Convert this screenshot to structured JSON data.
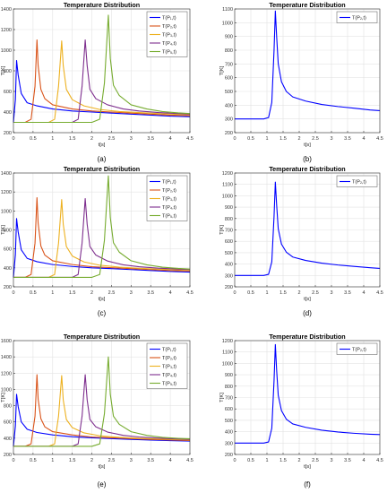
{
  "chart_data": [
    {
      "panel_label": "(a)",
      "type": "line",
      "title": "Temperature Distribution",
      "xlabel": "t[s]",
      "ylabel": "T[K]",
      "xlim": [
        0,
        4.5
      ],
      "ylim": [
        200,
        1400
      ],
      "xticks": [
        "0",
        "0.5",
        "1",
        "1.5",
        "2",
        "2.5",
        "3",
        "3.5",
        "4",
        "4.5"
      ],
      "yticks": [
        "200",
        "400",
        "600",
        "800",
        "1000",
        "1200",
        "1400"
      ],
      "grid": true,
      "legend": "top-right",
      "series": [
        {
          "name": "T(P₁,t)",
          "color": "#0000ff",
          "x": [
            0,
            0.05,
            0.08,
            0.12,
            0.2,
            0.35,
            0.6,
            1.0,
            1.5,
            2.0,
            2.5,
            3.0,
            3.5,
            4.0,
            4.5
          ],
          "y": [
            300,
            520,
            900,
            760,
            580,
            490,
            460,
            430,
            410,
            400,
            390,
            380,
            370,
            360,
            355
          ]
        },
        {
          "name": "T(P₂,t)",
          "color": "#d95319",
          "x": [
            0,
            0.3,
            0.45,
            0.55,
            0.6,
            0.63,
            0.7,
            0.8,
            1.0,
            1.5,
            2.0,
            2.5,
            3.0,
            3.5,
            4.0,
            4.5
          ],
          "y": [
            300,
            300,
            330,
            650,
            1100,
            850,
            620,
            530,
            470,
            430,
            410,
            400,
            390,
            380,
            370,
            365
          ]
        },
        {
          "name": "T(P₃,t)",
          "color": "#edb120",
          "x": [
            0,
            0.9,
            1.05,
            1.15,
            1.23,
            1.27,
            1.35,
            1.5,
            1.8,
            2.2,
            2.7,
            3.2,
            3.7,
            4.2,
            4.5
          ],
          "y": [
            300,
            300,
            330,
            650,
            1090,
            850,
            620,
            520,
            460,
            425,
            405,
            395,
            385,
            378,
            375
          ]
        },
        {
          "name": "T(P₄,t)",
          "color": "#7e2f8e",
          "x": [
            0,
            1.5,
            1.65,
            1.75,
            1.83,
            1.88,
            1.95,
            2.1,
            2.4,
            2.8,
            3.2,
            3.7,
            4.2,
            4.5
          ],
          "y": [
            300,
            300,
            330,
            650,
            1100,
            850,
            620,
            530,
            470,
            430,
            410,
            395,
            385,
            380
          ]
        },
        {
          "name": "T(P₅,t)",
          "color": "#77ac30",
          "x": [
            0,
            2.0,
            2.2,
            2.32,
            2.42,
            2.47,
            2.55,
            2.7,
            3.0,
            3.4,
            3.8,
            4.2,
            4.5
          ],
          "y": [
            300,
            300,
            330,
            680,
            1340,
            920,
            660,
            560,
            470,
            430,
            405,
            392,
            385
          ]
        }
      ]
    },
    {
      "panel_label": "(b)",
      "type": "line",
      "title": "Temperature Distribution",
      "xlabel": "t[s]",
      "ylabel": "T[K]",
      "xlim": [
        0,
        4.5
      ],
      "ylim": [
        200,
        1100
      ],
      "xticks": [
        "0",
        "0.5",
        "1",
        "1.5",
        "2",
        "2.5",
        "3",
        "3.5",
        "4",
        "4.5"
      ],
      "yticks": [
        "200",
        "300",
        "400",
        "500",
        "600",
        "700",
        "800",
        "900",
        "1000",
        "1100"
      ],
      "grid": true,
      "legend": "top-right",
      "series": [
        {
          "name": "T(P₂,t)",
          "color": "#0000ff",
          "x": [
            0,
            0.9,
            1.05,
            1.15,
            1.22,
            1.26,
            1.3,
            1.35,
            1.45,
            1.6,
            1.8,
            2.2,
            2.7,
            3.2,
            3.7,
            4.2,
            4.5
          ],
          "y": [
            300,
            300,
            310,
            420,
            800,
            1085,
            900,
            700,
            570,
            500,
            460,
            430,
            405,
            390,
            378,
            365,
            360
          ]
        }
      ]
    },
    {
      "panel_label": "(c)",
      "type": "line",
      "title": "Temperature Distribution",
      "xlabel": "t[s]",
      "ylabel": "T[K]",
      "xlim": [
        0,
        4.5
      ],
      "ylim": [
        200,
        1400
      ],
      "xticks": [
        "0",
        "0.5",
        "1",
        "1.5",
        "2",
        "2.5",
        "3",
        "3.5",
        "4",
        "4.5"
      ],
      "yticks": [
        "200",
        "400",
        "600",
        "800",
        "1000",
        "1200",
        "1400"
      ],
      "grid": true,
      "legend": "top-right",
      "series": [
        {
          "name": "T(P₁,t)",
          "color": "#0000ff",
          "x": [
            0,
            0.05,
            0.08,
            0.12,
            0.2,
            0.35,
            0.6,
            1.0,
            1.5,
            2.0,
            2.5,
            3.0,
            3.5,
            4.0,
            4.5
          ],
          "y": [
            300,
            540,
            920,
            780,
            590,
            500,
            465,
            435,
            415,
            400,
            392,
            382,
            372,
            362,
            355
          ]
        },
        {
          "name": "T(P₂,t)",
          "color": "#d95319",
          "x": [
            0,
            0.3,
            0.45,
            0.55,
            0.6,
            0.63,
            0.7,
            0.8,
            1.0,
            1.5,
            2.0,
            2.5,
            3.0,
            3.5,
            4.0,
            4.5
          ],
          "y": [
            300,
            300,
            330,
            660,
            1140,
            870,
            630,
            535,
            475,
            435,
            412,
            402,
            392,
            382,
            372,
            367
          ]
        },
        {
          "name": "T(P₃,t)",
          "color": "#edb120",
          "x": [
            0,
            0.9,
            1.05,
            1.15,
            1.23,
            1.27,
            1.35,
            1.5,
            1.8,
            2.2,
            2.7,
            3.2,
            3.7,
            4.2,
            4.5
          ],
          "y": [
            300,
            300,
            330,
            660,
            1120,
            860,
            625,
            525,
            462,
            428,
            408,
            396,
            386,
            380,
            376
          ]
        },
        {
          "name": "T(P₄,t)",
          "color": "#7e2f8e",
          "x": [
            0,
            1.5,
            1.65,
            1.75,
            1.83,
            1.88,
            1.95,
            2.1,
            2.4,
            2.8,
            3.2,
            3.7,
            4.2,
            4.5
          ],
          "y": [
            300,
            300,
            330,
            660,
            1130,
            860,
            625,
            535,
            472,
            432,
            412,
            397,
            387,
            382
          ]
        },
        {
          "name": "T(P₅,t)",
          "color": "#77ac30",
          "x": [
            0,
            2.0,
            2.2,
            2.32,
            2.42,
            2.47,
            2.55,
            2.7,
            3.0,
            3.4,
            3.8,
            4.2,
            4.5
          ],
          "y": [
            300,
            300,
            330,
            690,
            1370,
            930,
            665,
            565,
            475,
            432,
            407,
            394,
            387
          ]
        }
      ]
    },
    {
      "panel_label": "(d)",
      "type": "line",
      "title": "Temperature Distribution",
      "xlabel": "t[s]",
      "ylabel": "T[K]",
      "xlim": [
        0,
        4.5
      ],
      "ylim": [
        200,
        1200
      ],
      "xticks": [
        "0",
        "0.5",
        "1",
        "1.5",
        "2",
        "2.5",
        "3",
        "3.5",
        "4",
        "4.5"
      ],
      "yticks": [
        "200",
        "300",
        "400",
        "500",
        "600",
        "700",
        "800",
        "900",
        "1000",
        "1100",
        "1200"
      ],
      "grid": true,
      "legend": "top-right",
      "series": [
        {
          "name": "T(P₂,t)",
          "color": "#0000ff",
          "x": [
            0,
            0.9,
            1.05,
            1.15,
            1.22,
            1.26,
            1.3,
            1.35,
            1.45,
            1.6,
            1.8,
            2.2,
            2.7,
            3.2,
            3.7,
            4.2,
            4.5
          ],
          "y": [
            300,
            300,
            310,
            420,
            820,
            1120,
            920,
            710,
            575,
            505,
            462,
            432,
            408,
            392,
            380,
            368,
            362
          ]
        }
      ]
    },
    {
      "panel_label": "(e)",
      "type": "line",
      "title": "Temperature Distribution",
      "xlabel": "t[s]",
      "ylabel": "T[K]",
      "xlim": [
        0,
        4.5
      ],
      "ylim": [
        200,
        1600
      ],
      "xticks": [
        "0",
        "0.5",
        "1",
        "1.5",
        "2",
        "2.5",
        "3",
        "3.5",
        "4",
        "4.5"
      ],
      "yticks": [
        "200",
        "400",
        "600",
        "800",
        "1000",
        "1200",
        "1400",
        "1600"
      ],
      "grid": true,
      "legend": "top-right",
      "series": [
        {
          "name": "T(P₁,t)",
          "color": "#0000ff",
          "x": [
            0,
            0.05,
            0.08,
            0.12,
            0.2,
            0.35,
            0.6,
            1.0,
            1.5,
            2.0,
            2.5,
            3.0,
            3.5,
            4.0,
            4.5
          ],
          "y": [
            300,
            550,
            940,
            790,
            600,
            510,
            470,
            440,
            418,
            405,
            395,
            385,
            377,
            370,
            365
          ]
        },
        {
          "name": "T(P₂,t)",
          "color": "#d95319",
          "x": [
            0,
            0.3,
            0.45,
            0.55,
            0.6,
            0.63,
            0.7,
            0.8,
            1.0,
            1.5,
            2.0,
            2.5,
            3.0,
            3.5,
            4.0,
            4.5
          ],
          "y": [
            300,
            300,
            330,
            670,
            1180,
            880,
            640,
            540,
            480,
            440,
            415,
            405,
            395,
            385,
            378,
            372
          ]
        },
        {
          "name": "T(P₃,t)",
          "color": "#edb120",
          "x": [
            0,
            0.9,
            1.05,
            1.15,
            1.23,
            1.27,
            1.35,
            1.5,
            1.8,
            2.2,
            2.7,
            3.2,
            3.7,
            4.2,
            4.5
          ],
          "y": [
            300,
            300,
            330,
            670,
            1170,
            870,
            630,
            530,
            465,
            430,
            410,
            398,
            390,
            384,
            380
          ]
        },
        {
          "name": "T(P₄,t)",
          "color": "#7e2f8e",
          "x": [
            0,
            1.5,
            1.65,
            1.75,
            1.83,
            1.88,
            1.95,
            2.1,
            2.4,
            2.8,
            3.2,
            3.7,
            4.2,
            4.5
          ],
          "y": [
            300,
            300,
            330,
            670,
            1180,
            870,
            630,
            540,
            475,
            435,
            415,
            400,
            390,
            385
          ]
        },
        {
          "name": "T(P₅,t)",
          "color": "#77ac30",
          "x": [
            0,
            2.0,
            2.2,
            2.32,
            2.42,
            2.47,
            2.55,
            2.7,
            3.0,
            3.4,
            3.8,
            4.2,
            4.5
          ],
          "y": [
            300,
            300,
            330,
            700,
            1400,
            940,
            670,
            570,
            480,
            435,
            410,
            398,
            392
          ]
        }
      ]
    },
    {
      "panel_label": "(f)",
      "type": "line",
      "title": "Temperature Distribution",
      "xlabel": "t[s]",
      "ylabel": "T[K]",
      "xlim": [
        0,
        4.5
      ],
      "ylim": [
        200,
        1200
      ],
      "xticks": [
        "0",
        "0.5",
        "1",
        "1.5",
        "2",
        "2.5",
        "3",
        "3.5",
        "4",
        "4.5"
      ],
      "yticks": [
        "200",
        "300",
        "400",
        "500",
        "600",
        "700",
        "800",
        "900",
        "1000",
        "1100",
        "1200"
      ],
      "grid": true,
      "legend": "top-right",
      "series": [
        {
          "name": "T(P₂,t)",
          "color": "#0000ff",
          "x": [
            0,
            0.9,
            1.05,
            1.15,
            1.22,
            1.26,
            1.3,
            1.35,
            1.45,
            1.6,
            1.8,
            2.2,
            2.7,
            3.2,
            3.7,
            4.2,
            4.5
          ],
          "y": [
            300,
            300,
            310,
            430,
            850,
            1165,
            940,
            720,
            585,
            510,
            468,
            438,
            413,
            397,
            386,
            378,
            375
          ]
        }
      ]
    }
  ]
}
